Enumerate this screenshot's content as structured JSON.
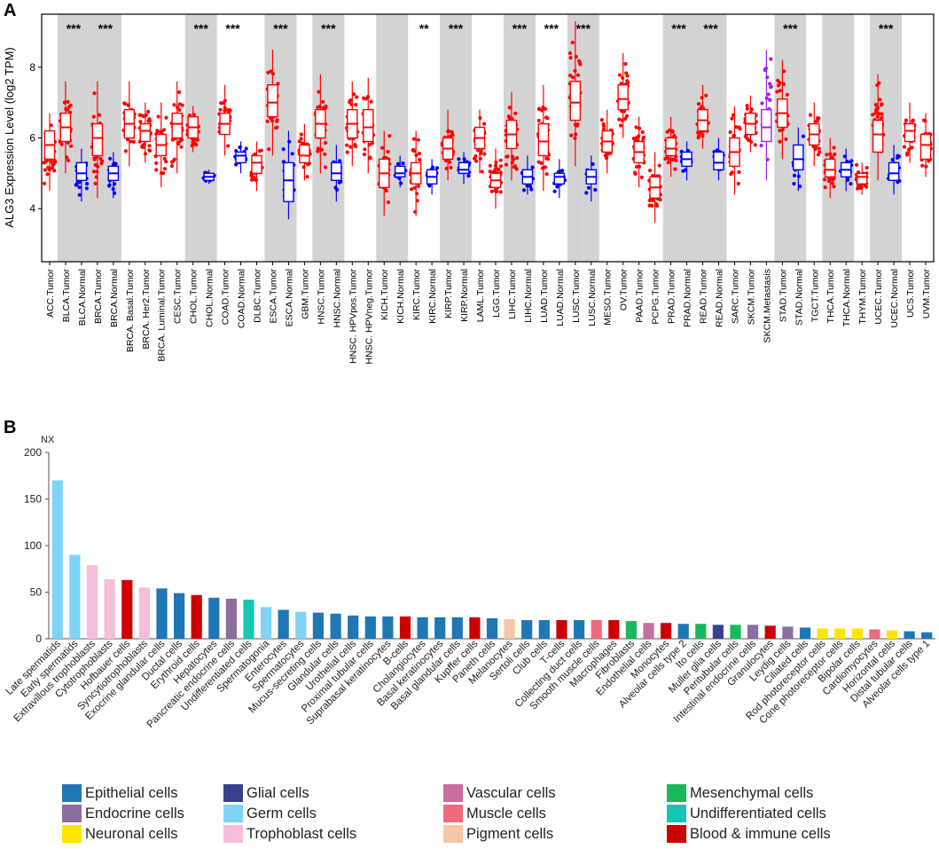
{
  "panel_a": {
    "label": "A",
    "ylabel": "ALG3 Expression Level (log2 TPM)",
    "yticks": [
      "4",
      "6",
      "8"
    ]
  },
  "panel_b": {
    "label": "B",
    "yunit": "NX",
    "yticks": [
      "0",
      "50",
      "100",
      "150",
      "200"
    ]
  },
  "colors": {
    "tumor": "#ff0000",
    "normal": "#0000ff",
    "metastasis": "#a020f0",
    "shade": "#d3d3d3"
  },
  "chart_data": [
    {
      "type": "box",
      "title": "",
      "ylabel": "ALG3 Expression Level (log2 TPM)",
      "ylim": [
        2.5,
        9.5
      ],
      "categories": [
        {
          "label": "ACC.Tumor",
          "kind": "tumor",
          "median": 5.8,
          "q1": 5.4,
          "q3": 6.2,
          "lo": 4.5,
          "hi": 6.7,
          "shade": false,
          "sig": ""
        },
        {
          "label": "BLCA.Tumor",
          "kind": "tumor",
          "median": 6.3,
          "q1": 5.9,
          "q3": 6.7,
          "lo": 5.0,
          "hi": 7.6,
          "shade": true,
          "sig": "***"
        },
        {
          "label": "BLCA.Normal",
          "kind": "normal",
          "median": 5.0,
          "q1": 4.8,
          "q3": 5.3,
          "lo": 4.2,
          "hi": 5.7,
          "shade": true,
          "sig": ""
        },
        {
          "label": "BRCA.Tumor",
          "kind": "tumor",
          "median": 6.0,
          "q1": 5.5,
          "q3": 6.4,
          "lo": 4.3,
          "hi": 7.6,
          "shade": true,
          "sig": "***"
        },
        {
          "label": "BRCA.Normal",
          "kind": "normal",
          "median": 5.0,
          "q1": 4.8,
          "q3": 5.2,
          "lo": 4.3,
          "hi": 5.6,
          "shade": true,
          "sig": ""
        },
        {
          "label": "BRCA. Basal.Tumor",
          "kind": "tumor",
          "median": 6.4,
          "q1": 6.0,
          "q3": 6.8,
          "lo": 5.2,
          "hi": 7.6,
          "shade": false,
          "sig": ""
        },
        {
          "label": "BRCA. Her2.Tumor",
          "kind": "tumor",
          "median": 6.2,
          "q1": 5.9,
          "q3": 6.4,
          "lo": 5.3,
          "hi": 7.0,
          "shade": false,
          "sig": ""
        },
        {
          "label": "BRCA. Luminal.Tumor",
          "kind": "tumor",
          "median": 5.8,
          "q1": 5.5,
          "q3": 6.1,
          "lo": 4.6,
          "hi": 7.0,
          "shade": false,
          "sig": ""
        },
        {
          "label": "CESC.Tumor",
          "kind": "tumor",
          "median": 6.4,
          "q1": 6.0,
          "q3": 6.7,
          "lo": 5.0,
          "hi": 7.6,
          "shade": false,
          "sig": ""
        },
        {
          "label": "CHOL.Tumor",
          "kind": "tumor",
          "median": 6.3,
          "q1": 6.0,
          "q3": 6.6,
          "lo": 5.6,
          "hi": 6.9,
          "shade": true,
          "sig": "***"
        },
        {
          "label": "CHOL.Normal",
          "kind": "normal",
          "median": 4.9,
          "q1": 4.8,
          "q3": 5.0,
          "lo": 4.7,
          "hi": 5.1,
          "shade": true,
          "sig": ""
        },
        {
          "label": "COAD.Tumor",
          "kind": "tumor",
          "median": 6.4,
          "q1": 6.1,
          "q3": 6.7,
          "lo": 5.5,
          "hi": 7.5,
          "shade": false,
          "sig": "***"
        },
        {
          "label": "COAD.Normal",
          "kind": "normal",
          "median": 5.5,
          "q1": 5.3,
          "q3": 5.6,
          "lo": 5.0,
          "hi": 5.9,
          "shade": false,
          "sig": ""
        },
        {
          "label": "DLBC.Tumor",
          "kind": "tumor",
          "median": 5.3,
          "q1": 5.0,
          "q3": 5.5,
          "lo": 4.5,
          "hi": 5.9,
          "shade": false,
          "sig": ""
        },
        {
          "label": "ESCA.Tumor",
          "kind": "tumor",
          "median": 7.0,
          "q1": 6.6,
          "q3": 7.5,
          "lo": 5.5,
          "hi": 8.5,
          "shade": true,
          "sig": "***"
        },
        {
          "label": "ESCA.Normal",
          "kind": "normal",
          "median": 4.8,
          "q1": 4.2,
          "q3": 5.3,
          "lo": 3.7,
          "hi": 6.2,
          "shade": true,
          "sig": ""
        },
        {
          "label": "GBM.Tumor",
          "kind": "tumor",
          "median": 5.5,
          "q1": 5.3,
          "q3": 5.8,
          "lo": 4.8,
          "hi": 6.4,
          "shade": false,
          "sig": ""
        },
        {
          "label": "HNSC.Tumor",
          "kind": "tumor",
          "median": 6.4,
          "q1": 6.0,
          "q3": 6.8,
          "lo": 5.0,
          "hi": 7.8,
          "shade": true,
          "sig": "***"
        },
        {
          "label": "HNSC.Normal",
          "kind": "normal",
          "median": 5.0,
          "q1": 4.8,
          "q3": 5.3,
          "lo": 4.2,
          "hi": 5.8,
          "shade": true,
          "sig": ""
        },
        {
          "label": "HNSC. HPVpos.Tumor",
          "kind": "tumor",
          "median": 6.4,
          "q1": 6.0,
          "q3": 6.8,
          "lo": 5.2,
          "hi": 7.6,
          "shade": false,
          "sig": ""
        },
        {
          "label": "HNSC. HPVneg.Tumor",
          "kind": "tumor",
          "median": 6.3,
          "q1": 5.9,
          "q3": 6.8,
          "lo": 5.0,
          "hi": 7.7,
          "shade": false,
          "sig": ""
        },
        {
          "label": "KICH.Tumor",
          "kind": "tumor",
          "median": 5.0,
          "q1": 4.6,
          "q3": 5.4,
          "lo": 3.8,
          "hi": 6.2,
          "shade": true,
          "sig": ""
        },
        {
          "label": "KICH.Normal",
          "kind": "normal",
          "median": 5.0,
          "q1": 4.9,
          "q3": 5.2,
          "lo": 4.6,
          "hi": 5.5,
          "shade": true,
          "sig": ""
        },
        {
          "label": "KIRC.Tumor",
          "kind": "tumor",
          "median": 5.0,
          "q1": 4.7,
          "q3": 5.3,
          "lo": 3.8,
          "hi": 6.2,
          "shade": false,
          "sig": "**"
        },
        {
          "label": "KIRC.Normal",
          "kind": "normal",
          "median": 4.9,
          "q1": 4.7,
          "q3": 5.1,
          "lo": 4.4,
          "hi": 5.4,
          "shade": false,
          "sig": ""
        },
        {
          "label": "KIRP.Tumor",
          "kind": "tumor",
          "median": 5.7,
          "q1": 5.4,
          "q3": 6.0,
          "lo": 4.8,
          "hi": 6.8,
          "shade": true,
          "sig": "***"
        },
        {
          "label": "KIRP.Normal",
          "kind": "normal",
          "median": 5.1,
          "q1": 5.0,
          "q3": 5.3,
          "lo": 4.7,
          "hi": 5.6,
          "shade": true,
          "sig": ""
        },
        {
          "label": "LAML.Tumor",
          "kind": "tumor",
          "median": 6.0,
          "q1": 5.7,
          "q3": 6.3,
          "lo": 5.0,
          "hi": 6.8,
          "shade": false,
          "sig": ""
        },
        {
          "label": "LGG.Tumor",
          "kind": "tumor",
          "median": 4.8,
          "q1": 4.6,
          "q3": 5.0,
          "lo": 4.0,
          "hi": 5.7,
          "shade": false,
          "sig": ""
        },
        {
          "label": "LIHC.Tumor",
          "kind": "tumor",
          "median": 6.1,
          "q1": 5.7,
          "q3": 6.5,
          "lo": 4.8,
          "hi": 7.3,
          "shade": true,
          "sig": "***"
        },
        {
          "label": "LIHC.Normal",
          "kind": "normal",
          "median": 4.9,
          "q1": 4.7,
          "q3": 5.1,
          "lo": 4.4,
          "hi": 5.5,
          "shade": true,
          "sig": ""
        },
        {
          "label": "LUAD.Tumor",
          "kind": "tumor",
          "median": 5.9,
          "q1": 5.5,
          "q3": 6.4,
          "lo": 4.5,
          "hi": 7.5,
          "shade": false,
          "sig": "***"
        },
        {
          "label": "LUAD.Normal",
          "kind": "normal",
          "median": 4.9,
          "q1": 4.7,
          "q3": 5.0,
          "lo": 4.3,
          "hi": 5.4,
          "shade": false,
          "sig": ""
        },
        {
          "label": "LUSC.Tumor",
          "kind": "tumor",
          "median": 7.0,
          "q1": 6.5,
          "q3": 7.6,
          "lo": 5.2,
          "hi": 9.3,
          "shade": true,
          "sig": "***"
        },
        {
          "label": "LUSC.Normal",
          "kind": "normal",
          "median": 4.9,
          "q1": 4.7,
          "q3": 5.1,
          "lo": 4.2,
          "hi": 5.5,
          "shade": true,
          "sig": ""
        },
        {
          "label": "MESO.Tumor",
          "kind": "tumor",
          "median": 5.9,
          "q1": 5.6,
          "q3": 6.2,
          "lo": 5.0,
          "hi": 6.8,
          "shade": false,
          "sig": ""
        },
        {
          "label": "OV.Tumor",
          "kind": "tumor",
          "median": 7.1,
          "q1": 6.8,
          "q3": 7.5,
          "lo": 6.0,
          "hi": 8.4,
          "shade": false,
          "sig": ""
        },
        {
          "label": "PAAD.Tumor",
          "kind": "tumor",
          "median": 5.6,
          "q1": 5.3,
          "q3": 5.9,
          "lo": 4.6,
          "hi": 6.6,
          "shade": false,
          "sig": ""
        },
        {
          "label": "PCPG.Tumor",
          "kind": "tumor",
          "median": 4.6,
          "q1": 4.3,
          "q3": 4.9,
          "lo": 3.6,
          "hi": 5.6,
          "shade": false,
          "sig": ""
        },
        {
          "label": "PRAD.Tumor",
          "kind": "tumor",
          "median": 5.7,
          "q1": 5.5,
          "q3": 6.0,
          "lo": 4.9,
          "hi": 6.6,
          "shade": true,
          "sig": "***"
        },
        {
          "label": "PRAD.Normal",
          "kind": "normal",
          "median": 5.4,
          "q1": 5.2,
          "q3": 5.6,
          "lo": 4.8,
          "hi": 5.9,
          "shade": true,
          "sig": ""
        },
        {
          "label": "READ.Tumor",
          "kind": "tumor",
          "median": 6.5,
          "q1": 6.2,
          "q3": 6.8,
          "lo": 5.7,
          "hi": 7.5,
          "shade": true,
          "sig": "***"
        },
        {
          "label": "READ.Normal",
          "kind": "normal",
          "median": 5.3,
          "q1": 5.1,
          "q3": 5.6,
          "lo": 4.8,
          "hi": 6.0,
          "shade": true,
          "sig": ""
        },
        {
          "label": "SARC.Tumor",
          "kind": "tumor",
          "median": 5.6,
          "q1": 5.2,
          "q3": 6.0,
          "lo": 4.4,
          "hi": 6.9,
          "shade": false,
          "sig": ""
        },
        {
          "label": "SKCM.Tumor",
          "kind": "tumor",
          "median": 6.4,
          "q1": 6.1,
          "q3": 6.7,
          "lo": 5.6,
          "hi": 7.2,
          "shade": false,
          "sig": ""
        },
        {
          "label": "SKCM.Metastasis",
          "kind": "metastasis",
          "median": 6.3,
          "q1": 5.9,
          "q3": 6.8,
          "lo": 4.8,
          "hi": 8.5,
          "shade": false,
          "sig": ""
        },
        {
          "label": "STAD.Tumor",
          "kind": "tumor",
          "median": 6.7,
          "q1": 6.3,
          "q3": 7.1,
          "lo": 5.4,
          "hi": 8.2,
          "shade": true,
          "sig": "***"
        },
        {
          "label": "STAD.Normal",
          "kind": "normal",
          "median": 5.4,
          "q1": 5.1,
          "q3": 5.8,
          "lo": 4.5,
          "hi": 6.3,
          "shade": true,
          "sig": ""
        },
        {
          "label": "TGCT.Tumor",
          "kind": "tumor",
          "median": 6.1,
          "q1": 5.8,
          "q3": 6.4,
          "lo": 5.2,
          "hi": 7.0,
          "shade": false,
          "sig": ""
        },
        {
          "label": "THCA.Tumor",
          "kind": "tumor",
          "median": 5.1,
          "q1": 4.9,
          "q3": 5.4,
          "lo": 4.3,
          "hi": 6.0,
          "shade": true,
          "sig": ""
        },
        {
          "label": "THCA.Normal",
          "kind": "normal",
          "median": 5.1,
          "q1": 4.9,
          "q3": 5.3,
          "lo": 4.5,
          "hi": 5.7,
          "shade": true,
          "sig": ""
        },
        {
          "label": "THYM.Tumor",
          "kind": "tumor",
          "median": 4.9,
          "q1": 4.7,
          "q3": 5.0,
          "lo": 4.4,
          "hi": 5.3,
          "shade": false,
          "sig": ""
        },
        {
          "label": "UCEC.Tumor",
          "kind": "tumor",
          "median": 6.1,
          "q1": 5.6,
          "q3": 6.5,
          "lo": 4.8,
          "hi": 7.8,
          "shade": true,
          "sig": "***"
        },
        {
          "label": "UCEC.Normal",
          "kind": "normal",
          "median": 5.0,
          "q1": 4.8,
          "q3": 5.3,
          "lo": 4.4,
          "hi": 5.8,
          "shade": true,
          "sig": ""
        },
        {
          "label": "UCS.Tumor",
          "kind": "tumor",
          "median": 6.2,
          "q1": 5.9,
          "q3": 6.4,
          "lo": 5.3,
          "hi": 7.0,
          "shade": false,
          "sig": ""
        },
        {
          "label": "UVM.Tumor",
          "kind": "tumor",
          "median": 5.8,
          "q1": 5.4,
          "q3": 6.1,
          "lo": 4.9,
          "hi": 6.7,
          "shade": false,
          "sig": ""
        }
      ]
    },
    {
      "type": "bar",
      "title": "",
      "ylabel": "NX",
      "ylim": [
        0,
        200
      ],
      "categories": [
        "Late spermatids",
        "Early spermatids",
        "Extravillous trophoblasts",
        "Cytotrophoblasts",
        "Hofbauer cells",
        "Syncytiotrophoblasts",
        "Exocrine glandular cells",
        "Ductal cells",
        "Erythroid cells",
        "Hepatocytes",
        "Pancreatic endocrine cells",
        "Undifferentiated cells",
        "Spermatogonia",
        "Enterocytes",
        "Spermatocytes",
        "Mucus-secreting cells",
        "Glandular cells",
        "Urothelial cells",
        "Proximal tubular cells",
        "Suprabasal keratinocytes",
        "B-cells",
        "Cholangiocytes",
        "Basal keratinocytes",
        "Basal glandular cells",
        "Kupffer cells",
        "Paneth cells",
        "Melanocytes",
        "Sertoli cells",
        "Club cells",
        "T-cells",
        "Collecting duct cells",
        "Smooth muscle cells",
        "Macrophages",
        "Fibroblasts",
        "Endothelial cells",
        "Monocytes",
        "Alveolar cells type 2",
        "Ito cells",
        "Muller glia cells",
        "Peritubular cells",
        "Intestinal endocrine cells",
        "Granulocytes",
        "Leydig cells",
        "Ciliated cells",
        "Rod photoreceptor cells",
        "Cone photoreceptor cells",
        "Bipolar cells",
        "Cardiomyocytes",
        "Horizontal cells",
        "Distal tubular cells",
        "Alveolar cells type 1"
      ],
      "values": [
        170,
        90,
        79,
        64,
        63,
        55,
        54,
        49,
        47,
        44,
        43,
        42,
        34,
        31,
        29,
        28,
        27,
        25,
        24,
        24,
        24,
        23,
        23,
        23,
        23,
        22,
        21,
        20,
        20,
        20,
        20,
        20,
        20,
        19,
        17,
        17,
        16,
        16,
        15,
        15,
        15,
        14,
        13,
        12,
        11,
        11,
        11,
        10,
        9,
        8,
        7
      ],
      "groups": [
        "germ",
        "germ",
        "tropho",
        "tropho",
        "blood",
        "tropho",
        "epi",
        "epi",
        "blood",
        "epi",
        "endo",
        "undiff",
        "germ",
        "epi",
        "germ",
        "epi",
        "epi",
        "epi",
        "epi",
        "epi",
        "blood",
        "epi",
        "epi",
        "epi",
        "blood",
        "epi",
        "pigment",
        "epi",
        "epi",
        "blood",
        "epi",
        "muscle",
        "blood",
        "mesen",
        "vascular",
        "blood",
        "epi",
        "mesen",
        "glial",
        "mesen",
        "endo",
        "blood",
        "endo",
        "epi",
        "neuronal",
        "neuronal",
        "neuronal",
        "muscle",
        "neuronal",
        "epi",
        "epi"
      ],
      "legend": [
        {
          "key": "epi",
          "label": "Epithelial cells",
          "color": "#1f77b4"
        },
        {
          "key": "endo",
          "label": "Endocrine cells",
          "color": "#8c6d9f"
        },
        {
          "key": "neuronal",
          "label": "Neuronal cells",
          "color": "#ffe400"
        },
        {
          "key": "glial",
          "label": "Glial cells",
          "color": "#3b3f8f"
        },
        {
          "key": "germ",
          "label": "Germ cells",
          "color": "#7fd4f5"
        },
        {
          "key": "tropho",
          "label": "Trophoblast cells",
          "color": "#f7bdd9"
        },
        {
          "key": "vascular",
          "label": "Vascular cells",
          "color": "#c86ea1"
        },
        {
          "key": "muscle",
          "label": "Muscle cells",
          "color": "#f06a7d"
        },
        {
          "key": "pigment",
          "label": "Pigment cells",
          "color": "#f7c6a8"
        },
        {
          "key": "mesen",
          "label": "Mesenchymal cells",
          "color": "#19b85a"
        },
        {
          "key": "undiff",
          "label": "Undifferentiated cells",
          "color": "#17c4b4"
        },
        {
          "key": "blood",
          "label": "Blood & immune cells",
          "color": "#cc0000"
        }
      ]
    }
  ]
}
